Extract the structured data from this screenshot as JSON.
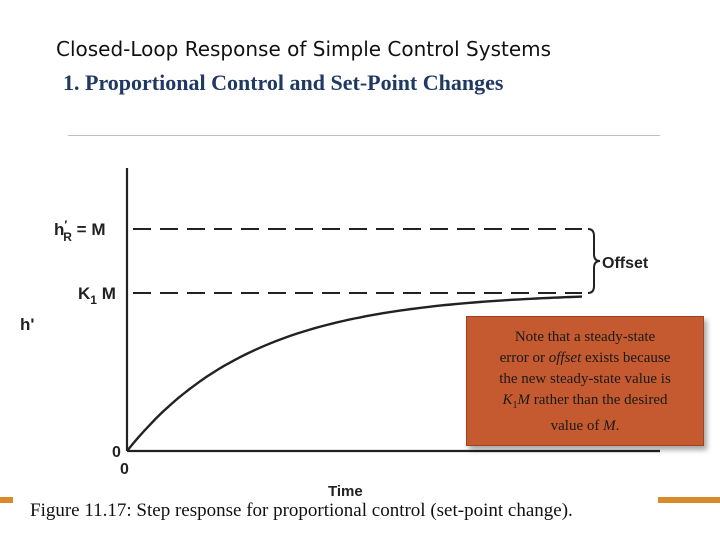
{
  "slide": {
    "title": "Closed-Loop Response of Simple Control Systems",
    "subtitle": "1. Proportional Control and Set-Point Changes"
  },
  "figure": {
    "y_axis_label": "h'",
    "x_axis_label": "Time",
    "setpoint_label_h": "h",
    "setpoint_label_sup": "′",
    "setpoint_label_sub": "R",
    "setpoint_label_rest": " = M",
    "steady_label_k": "K",
    "steady_label_sub": "1",
    "steady_label_rest": " M",
    "origin_y": "0",
    "origin_x": "0",
    "offset_label": "Offset",
    "setpoint_level": 1.0,
    "steady_state_level": 0.5
  },
  "note": {
    "line1": "Note that a steady-state",
    "line2_a": "error or ",
    "line2_em": "offset",
    "line2_b": " exists because",
    "line3": "the new steady-state value is",
    "line4_k": "K",
    "line4_sub": "1",
    "line4_m": "M",
    "line4_rest": " rather than the desired",
    "line5_a": "value of ",
    "line5_em": "M",
    "line5_b": "."
  },
  "caption": "Figure 11.17: Step response for proportional control (set-point change).",
  "colors": {
    "note_fill": "#c55a30",
    "subtitle": "#1f3864",
    "accent_bar": "#d98b2b"
  }
}
